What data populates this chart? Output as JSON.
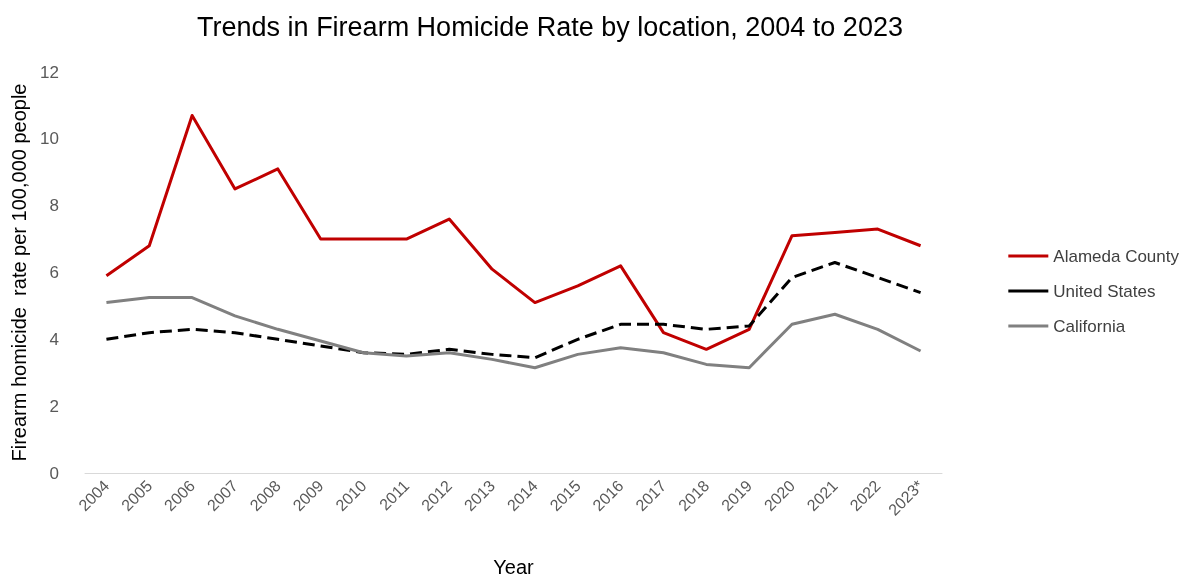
{
  "chart_data": {
    "type": "line",
    "title": "Trends in Firearm Homicide Rate by location, 2004 to 2023",
    "xlabel": "Year",
    "ylabel": "Firearm homicide  rate per 100,000 people",
    "categories": [
      "2004",
      "2005",
      "2006",
      "2007",
      "2008",
      "2009",
      "2010",
      "2011",
      "2012",
      "2013",
      "2014",
      "2015",
      "2016",
      "2017",
      "2018",
      "2019",
      "2020",
      "2021",
      "2022",
      "2023*"
    ],
    "series": [
      {
        "name": "Alameda County",
        "color": "#c00000",
        "line_style": "solid",
        "values": [
          5.9,
          6.8,
          10.7,
          8.5,
          9.1,
          7.0,
          7.0,
          7.0,
          7.6,
          6.1,
          5.1,
          5.6,
          6.2,
          4.2,
          3.7,
          4.3,
          7.1,
          7.2,
          7.3,
          6.8
        ]
      },
      {
        "name": "United States",
        "color": "#000000",
        "line_style": "dashed",
        "values": [
          4.0,
          4.2,
          4.3,
          4.2,
          4.0,
          3.8,
          3.6,
          3.55,
          3.7,
          3.55,
          3.45,
          4.0,
          4.45,
          4.45,
          4.3,
          4.4,
          5.85,
          6.3,
          5.85,
          5.4
        ]
      },
      {
        "name": "California",
        "color": "#808080",
        "line_style": "solid",
        "values": [
          5.1,
          5.25,
          5.25,
          4.7,
          4.3,
          3.95,
          3.6,
          3.5,
          3.6,
          3.4,
          3.15,
          3.55,
          3.75,
          3.6,
          3.25,
          3.15,
          4.45,
          4.75,
          4.3,
          3.65
        ]
      }
    ],
    "ylim": [
      0,
      12
    ],
    "yticks": [
      0,
      2,
      4,
      6,
      8,
      10,
      12
    ],
    "grid": false,
    "legend": "right",
    "marker": "none"
  }
}
